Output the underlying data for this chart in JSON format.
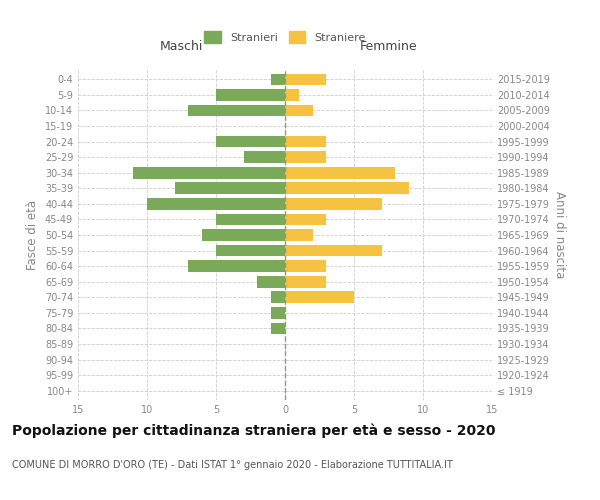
{
  "age_groups": [
    "100+",
    "95-99",
    "90-94",
    "85-89",
    "80-84",
    "75-79",
    "70-74",
    "65-69",
    "60-64",
    "55-59",
    "50-54",
    "45-49",
    "40-44",
    "35-39",
    "30-34",
    "25-29",
    "20-24",
    "15-19",
    "10-14",
    "5-9",
    "0-4"
  ],
  "birth_years": [
    "≤ 1919",
    "1920-1924",
    "1925-1929",
    "1930-1934",
    "1935-1939",
    "1940-1944",
    "1945-1949",
    "1950-1954",
    "1955-1959",
    "1960-1964",
    "1965-1969",
    "1970-1974",
    "1975-1979",
    "1980-1984",
    "1985-1989",
    "1990-1994",
    "1995-1999",
    "2000-2004",
    "2005-2009",
    "2010-2014",
    "2015-2019"
  ],
  "males": [
    0,
    0,
    0,
    0,
    1,
    1,
    1,
    2,
    7,
    5,
    6,
    5,
    10,
    8,
    11,
    3,
    5,
    0,
    7,
    5,
    1
  ],
  "females": [
    0,
    0,
    0,
    0,
    0,
    0,
    5,
    3,
    3,
    7,
    2,
    3,
    7,
    9,
    8,
    3,
    3,
    0,
    2,
    1,
    3
  ],
  "male_color": "#7aaa59",
  "female_color": "#f5c242",
  "grid_color": "#cccccc",
  "background_color": "#ffffff",
  "title": "Popolazione per cittadinanza straniera per età e sesso - 2020",
  "subtitle": "COMUNE DI MORRO D'ORO (TE) - Dati ISTAT 1° gennaio 2020 - Elaborazione TUTTITALIA.IT",
  "xlabel_left": "Maschi",
  "xlabel_right": "Femmine",
  "ylabel_left": "Fasce di età",
  "ylabel_right": "Anni di nascita",
  "legend_male": "Stranieri",
  "legend_female": "Straniere",
  "xlim": 15,
  "bar_height": 0.75,
  "title_fontsize": 10,
  "subtitle_fontsize": 7,
  "tick_fontsize": 7,
  "label_fontsize": 8.5
}
